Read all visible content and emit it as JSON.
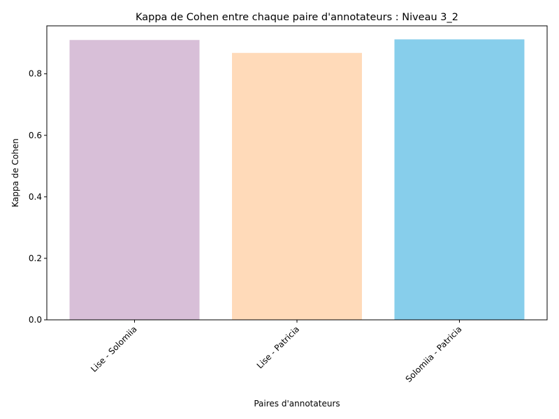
{
  "chart_data": {
    "type": "bar",
    "title": "Kappa de Cohen entre chaque paire d'annotateurs : Niveau 3_2",
    "xlabel": "Paires d'annotateurs",
    "ylabel": "Kappa de Cohen",
    "categories": [
      "Lise - Solomiia",
      "Lise - Patricia",
      "Solomiia - Patricia"
    ],
    "values": [
      0.91,
      0.868,
      0.912
    ],
    "colors": [
      "#d8bfd8",
      "#ffdab9",
      "#87ceeb"
    ],
    "ylim": [
      0,
      0.956
    ],
    "yticks": [
      "0.0",
      "0.2",
      "0.4",
      "0.6",
      "0.8"
    ],
    "grid": false,
    "xtick_rotation": 45
  }
}
